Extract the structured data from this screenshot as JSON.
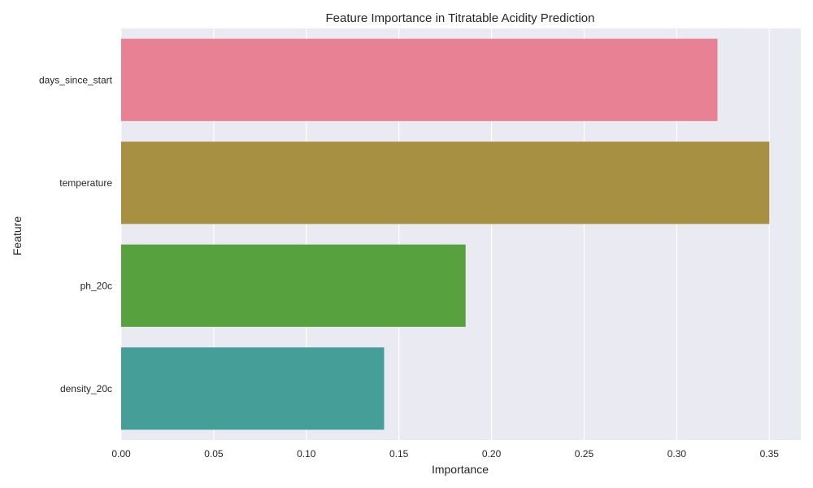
{
  "chart_data": {
    "type": "bar",
    "orientation": "horizontal",
    "title": "Feature Importance in Titratable Acidity Prediction",
    "xlabel": "Importance",
    "ylabel": "Feature",
    "categories": [
      "days_since_start",
      "temperature",
      "ph_20c",
      "density_20c"
    ],
    "values": [
      0.322,
      0.35,
      0.186,
      0.142
    ],
    "colors": [
      "#e88193",
      "#a89042",
      "#57a23f",
      "#469e98"
    ],
    "xlim": [
      0,
      0.367
    ],
    "xticks": [
      "0.00",
      "0.05",
      "0.10",
      "0.15",
      "0.20",
      "0.25",
      "0.30",
      "0.35"
    ],
    "grid": true,
    "background": "#eaeaf2"
  }
}
